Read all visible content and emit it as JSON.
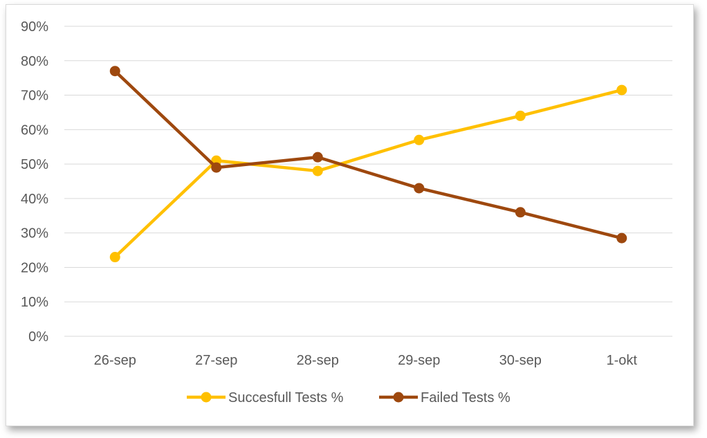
{
  "chart_data": {
    "type": "line",
    "categories": [
      "26-sep",
      "27-sep",
      "28-sep",
      "29-sep",
      "30-sep",
      "1-okt"
    ],
    "series": [
      {
        "name": "Succesfull Tests %",
        "color": "#FFC000",
        "values": [
          0.23,
          0.51,
          0.48,
          0.57,
          0.64,
          0.715
        ]
      },
      {
        "name": "Failed Tests %",
        "color": "#9E480E",
        "values": [
          0.77,
          0.49,
          0.52,
          0.43,
          0.36,
          0.285
        ]
      }
    ],
    "ylim": [
      0,
      0.9
    ],
    "yticks": [
      "0%",
      "10%",
      "20%",
      "30%",
      "40%",
      "50%",
      "60%",
      "70%",
      "80%",
      "90%"
    ],
    "grid": true,
    "legend_position": "bottom"
  }
}
